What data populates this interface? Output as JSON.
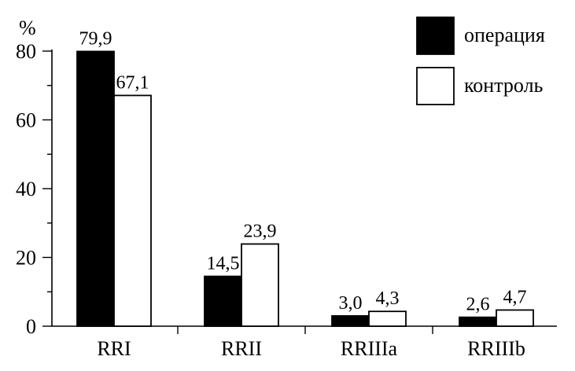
{
  "chart_data": {
    "type": "bar",
    "categories": [
      "RRI",
      "RRII",
      "RRIIIa",
      "RRIIIb"
    ],
    "series": [
      {
        "name": "операция",
        "values": [
          79.9,
          14.5,
          3.0,
          2.6
        ],
        "labels": [
          "79,9",
          "14,5",
          "3,0",
          "2,6"
        ],
        "color": "#000000"
      },
      {
        "name": "контроль",
        "values": [
          67.1,
          23.9,
          4.3,
          4.7
        ],
        "labels": [
          "67,1",
          "23,9",
          "4,3",
          "4,7"
        ],
        "color": "#ffffff"
      }
    ],
    "y_unit": "%",
    "ylim": [
      0,
      80
    ],
    "y_ticks": [
      0,
      20,
      40,
      60,
      80
    ],
    "y_minor_step": 10,
    "grid": false,
    "legend_position": "top-right"
  }
}
